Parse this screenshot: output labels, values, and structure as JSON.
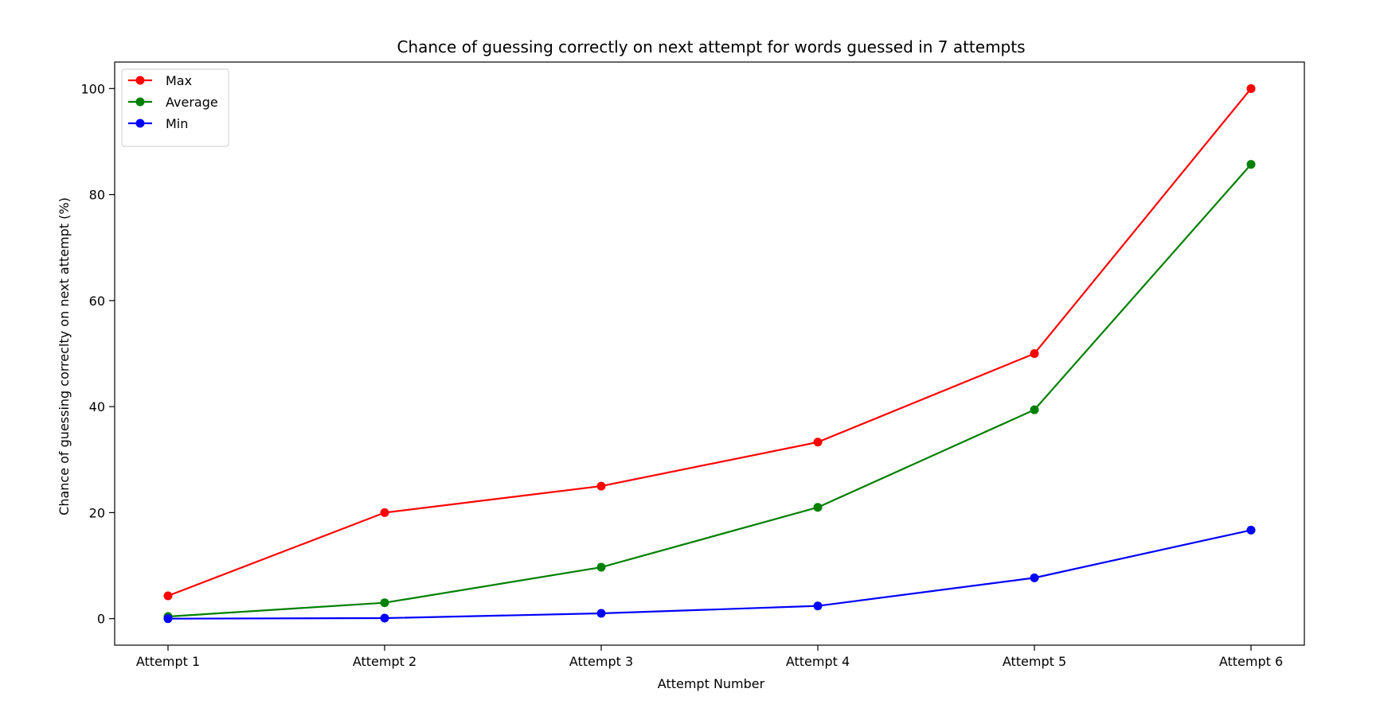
{
  "chart_data": {
    "type": "line",
    "title": "Chance of guessing correctly on next attempt for words guessed in 7 attempts",
    "xlabel": "Attempt Number",
    "ylabel": "Chance of guessing correclty on next attempt (%)",
    "categories": [
      "Attempt 1",
      "Attempt 2",
      "Attempt 3",
      "Attempt 4",
      "Attempt 5",
      "Attempt 6"
    ],
    "ylim": [
      -5,
      105
    ],
    "yticks": [
      0,
      20,
      40,
      60,
      80,
      100
    ],
    "grid": false,
    "legend_position": "top-left",
    "series": [
      {
        "name": "Max",
        "color": "#ff0000",
        "marker": "circle",
        "values": [
          4.3,
          20,
          25,
          33.3,
          50,
          100
        ]
      },
      {
        "name": "Average",
        "color": "#008000",
        "marker": "circle",
        "values": [
          0.4,
          3.0,
          9.7,
          21.0,
          39.4,
          85.7
        ]
      },
      {
        "name": "Min",
        "color": "#0000ff",
        "marker": "circle",
        "values": [
          0.0,
          0.1,
          1.0,
          2.4,
          7.7,
          16.7
        ]
      }
    ]
  }
}
